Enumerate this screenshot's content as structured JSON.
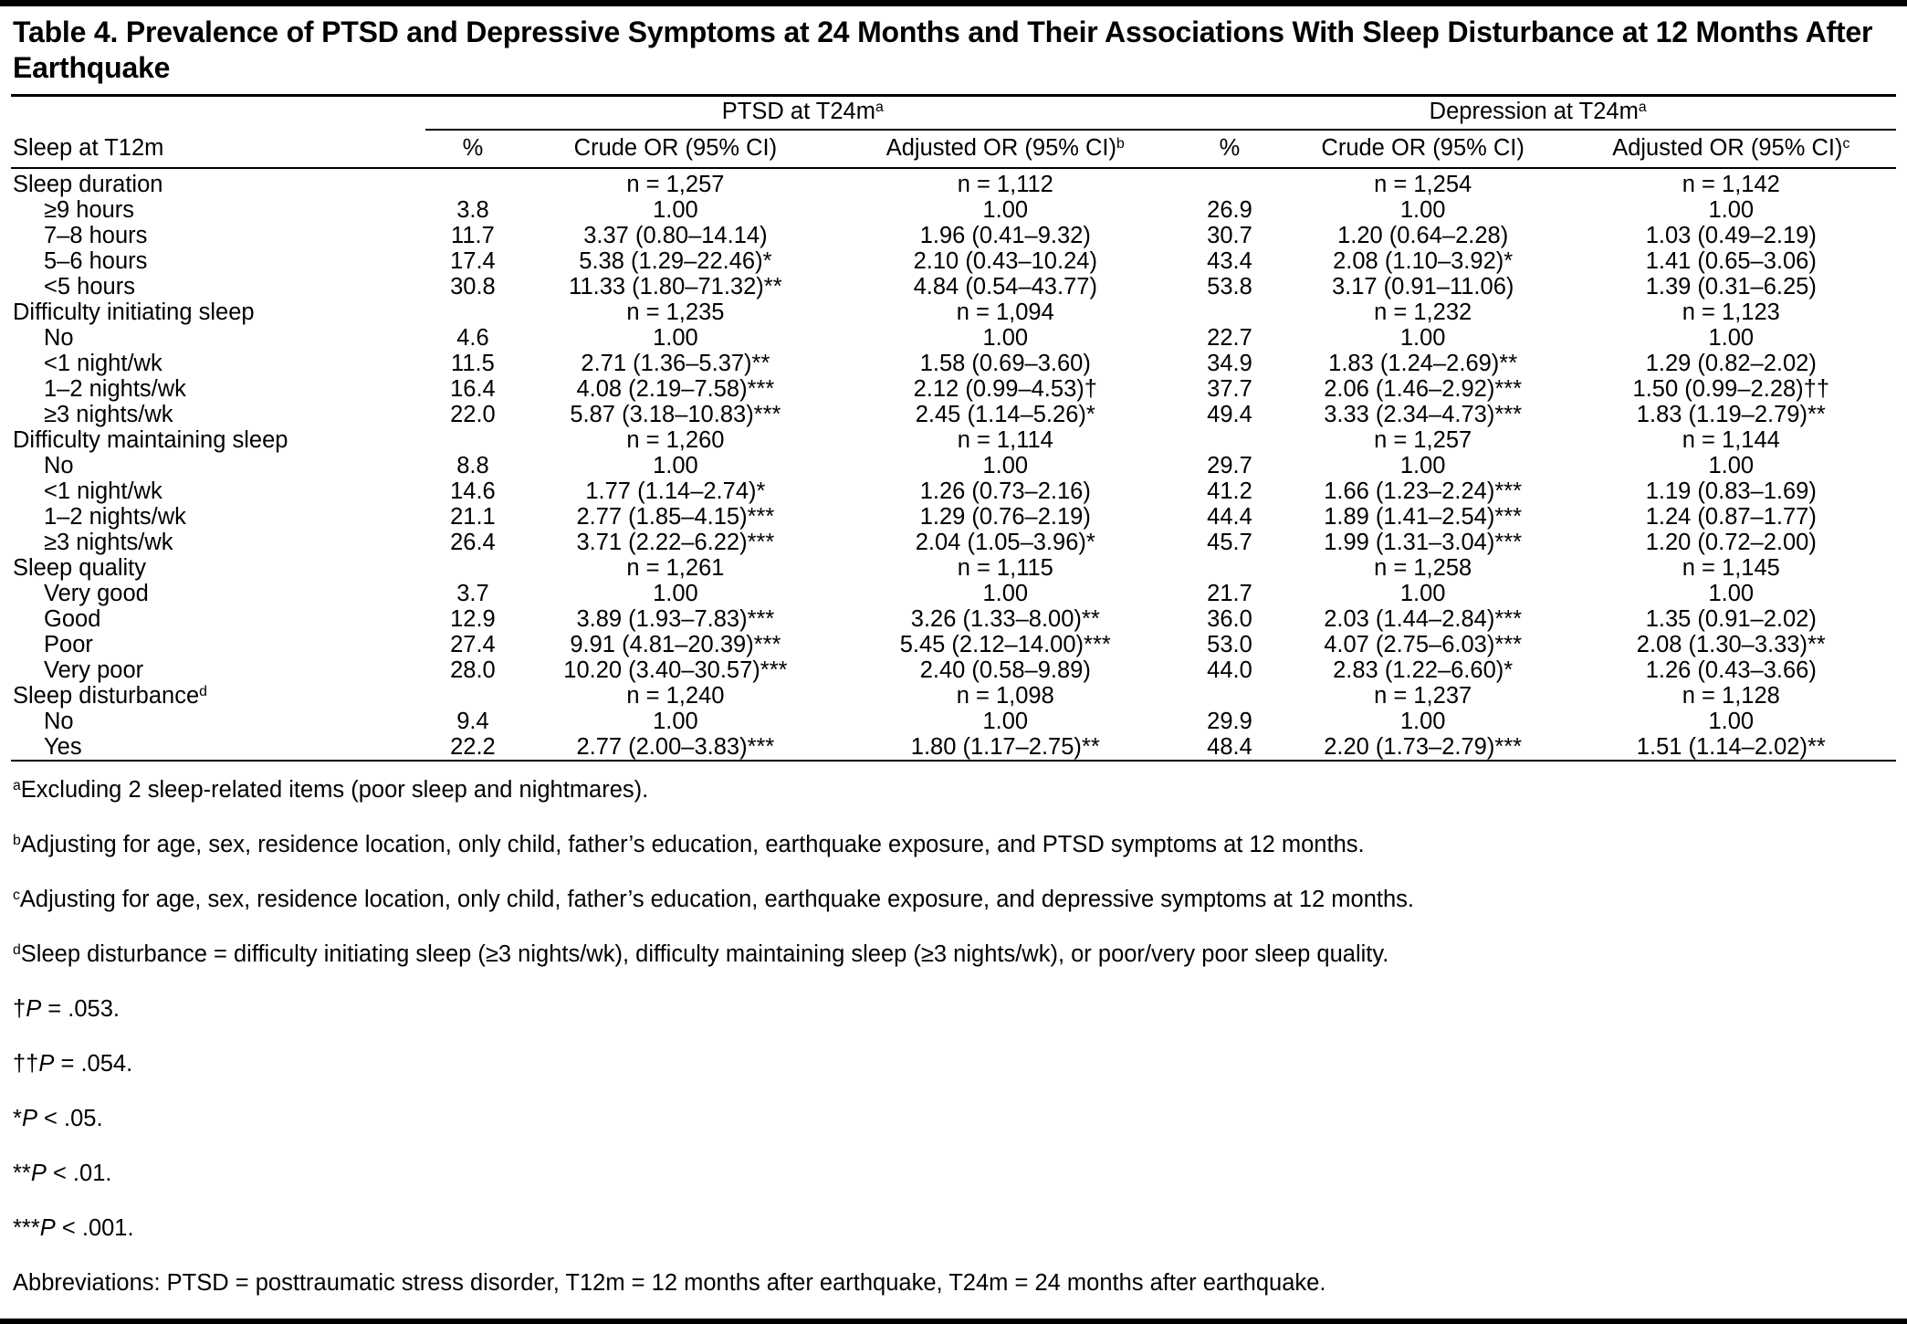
{
  "colors": {
    "text": "#000000",
    "background": "#ffffff",
    "rules": "#000000"
  },
  "title": "Table 4. Prevalence of PTSD and Depressive Symptoms at 24 Months and Their Associations With Sleep Disturbance at 12 Months After Earthquake",
  "table": {
    "row_header": "Sleep at T12m",
    "groups": [
      {
        "label": "PTSD at T24m",
        "sup": "a"
      },
      {
        "label": "Depression at T24m",
        "sup": "a"
      }
    ],
    "columns": [
      {
        "label": "%",
        "sup": ""
      },
      {
        "label": "Crude OR (95% CI)",
        "sup": ""
      },
      {
        "label": "Adjusted OR (95% CI)",
        "sup": "b"
      },
      {
        "label": "%",
        "sup": ""
      },
      {
        "label": "Crude OR (95% CI)",
        "sup": ""
      },
      {
        "label": "Adjusted OR (95% CI)",
        "sup": "c"
      }
    ],
    "rows": [
      {
        "label": "Sleep duration",
        "section": true,
        "indent": false,
        "sup": "",
        "cells": [
          "",
          "n = 1,257",
          "n = 1,112",
          "",
          "n = 1,254",
          "n = 1,142"
        ]
      },
      {
        "label": "≥9 hours",
        "section": false,
        "indent": true,
        "sup": "",
        "cells": [
          "3.8",
          "1.00",
          "1.00",
          "26.9",
          "1.00",
          "1.00"
        ]
      },
      {
        "label": "7–8 hours",
        "section": false,
        "indent": true,
        "sup": "",
        "cells": [
          "11.7",
          "3.37 (0.80–14.14)",
          "1.96 (0.41–9.32)",
          "30.7",
          "1.20 (0.64–2.28)",
          "1.03 (0.49–2.19)"
        ]
      },
      {
        "label": "5–6 hours",
        "section": false,
        "indent": true,
        "sup": "",
        "cells": [
          "17.4",
          "5.38 (1.29–22.46)*",
          "2.10 (0.43–10.24)",
          "43.4",
          "2.08 (1.10–3.92)*",
          "1.41 (0.65–3.06)"
        ]
      },
      {
        "label": "<5 hours",
        "section": false,
        "indent": true,
        "sup": "",
        "cells": [
          "30.8",
          "11.33 (1.80–71.32)**",
          "4.84 (0.54–43.77)",
          "53.8",
          "3.17 (0.91–11.06)",
          "1.39 (0.31–6.25)"
        ]
      },
      {
        "label": "Difficulty initiating sleep",
        "section": true,
        "indent": false,
        "sup": "",
        "cells": [
          "",
          "n = 1,235",
          "n = 1,094",
          "",
          "n = 1,232",
          "n = 1,123"
        ]
      },
      {
        "label": "No",
        "section": false,
        "indent": true,
        "sup": "",
        "cells": [
          "4.6",
          "1.00",
          "1.00",
          "22.7",
          "1.00",
          "1.00"
        ]
      },
      {
        "label": "<1 night/wk",
        "section": false,
        "indent": true,
        "sup": "",
        "cells": [
          "11.5",
          "2.71 (1.36–5.37)**",
          "1.58 (0.69–3.60)",
          "34.9",
          "1.83 (1.24–2.69)**",
          "1.29 (0.82–2.02)"
        ]
      },
      {
        "label": "1–2 nights/wk",
        "section": false,
        "indent": true,
        "sup": "",
        "cells": [
          "16.4",
          "4.08 (2.19–7.58)***",
          "2.12 (0.99–4.53)†",
          "37.7",
          "2.06 (1.46–2.92)***",
          "1.50 (0.99–2.28)††"
        ]
      },
      {
        "label": "≥3 nights/wk",
        "section": false,
        "indent": true,
        "sup": "",
        "cells": [
          "22.0",
          "5.87 (3.18–10.83)***",
          "2.45 (1.14–5.26)*",
          "49.4",
          "3.33 (2.34–4.73)***",
          "1.83 (1.19–2.79)**"
        ]
      },
      {
        "label": "Difficulty maintaining sleep",
        "section": true,
        "indent": false,
        "sup": "",
        "cells": [
          "",
          "n = 1,260",
          "n = 1,114",
          "",
          "n = 1,257",
          "n = 1,144"
        ]
      },
      {
        "label": "No",
        "section": false,
        "indent": true,
        "sup": "",
        "cells": [
          "8.8",
          "1.00",
          "1.00",
          "29.7",
          "1.00",
          "1.00"
        ]
      },
      {
        "label": "<1 night/wk",
        "section": false,
        "indent": true,
        "sup": "",
        "cells": [
          "14.6",
          "1.77 (1.14–2.74)*",
          "1.26 (0.73–2.16)",
          "41.2",
          "1.66 (1.23–2.24)***",
          "1.19 (0.83–1.69)"
        ]
      },
      {
        "label": "1–2 nights/wk",
        "section": false,
        "indent": true,
        "sup": "",
        "cells": [
          "21.1",
          "2.77 (1.85–4.15)***",
          "1.29 (0.76–2.19)",
          "44.4",
          "1.89 (1.41–2.54)***",
          "1.24 (0.87–1.77)"
        ]
      },
      {
        "label": "≥3 nights/wk",
        "section": false,
        "indent": true,
        "sup": "",
        "cells": [
          "26.4",
          "3.71 (2.22–6.22)***",
          "2.04 (1.05–3.96)*",
          "45.7",
          "1.99 (1.31–3.04)***",
          "1.20 (0.72–2.00)"
        ]
      },
      {
        "label": "Sleep quality",
        "section": true,
        "indent": false,
        "sup": "",
        "cells": [
          "",
          "n = 1,261",
          "n = 1,115",
          "",
          "n = 1,258",
          "n = 1,145"
        ]
      },
      {
        "label": "Very good",
        "section": false,
        "indent": true,
        "sup": "",
        "cells": [
          "3.7",
          "1.00",
          "1.00",
          "21.7",
          "1.00",
          "1.00"
        ]
      },
      {
        "label": "Good",
        "section": false,
        "indent": true,
        "sup": "",
        "cells": [
          "12.9",
          "3.89 (1.93–7.83)***",
          "3.26 (1.33–8.00)**",
          "36.0",
          "2.03 (1.44–2.84)***",
          "1.35 (0.91–2.02)"
        ]
      },
      {
        "label": "Poor",
        "section": false,
        "indent": true,
        "sup": "",
        "cells": [
          "27.4",
          "9.91 (4.81–20.39)***",
          "5.45 (2.12–14.00)***",
          "53.0",
          "4.07 (2.75–6.03)***",
          "2.08 (1.30–3.33)**"
        ]
      },
      {
        "label": "Very poor",
        "section": false,
        "indent": true,
        "sup": "",
        "cells": [
          "28.0",
          "10.20 (3.40–30.57)***",
          "2.40 (0.58–9.89)",
          "44.0",
          "2.83 (1.22–6.60)*",
          "1.26 (0.43–3.66)"
        ]
      },
      {
        "label": "Sleep disturbance",
        "section": true,
        "indent": false,
        "sup": "d",
        "cells": [
          "",
          "n = 1,240",
          "n = 1,098",
          "",
          "n = 1,237",
          "n = 1,128"
        ]
      },
      {
        "label": "No",
        "section": false,
        "indent": true,
        "sup": "",
        "cells": [
          "9.4",
          "1.00",
          "1.00",
          "29.9",
          "1.00",
          "1.00"
        ]
      },
      {
        "label": "Yes",
        "section": false,
        "indent": true,
        "sup": "",
        "cells": [
          "22.2",
          "2.77 (2.00–3.83)***",
          "1.80 (1.17–2.75)**",
          "48.4",
          "2.20 (1.73–2.79)***",
          "1.51 (1.14–2.02)**"
        ]
      }
    ]
  },
  "footnotes": [
    {
      "segments": [
        {
          "t": "sup",
          "v": "a"
        },
        {
          "t": "text",
          "v": "Excluding 2 sleep-related items (poor sleep and nightmares)."
        }
      ]
    },
    {
      "segments": [
        {
          "t": "sup",
          "v": "b"
        },
        {
          "t": "text",
          "v": "Adjusting for age, sex, residence location, only child, father’s education, earthquake exposure, and PTSD symptoms at 12 months."
        }
      ]
    },
    {
      "segments": [
        {
          "t": "sup",
          "v": "c"
        },
        {
          "t": "text",
          "v": "Adjusting for age, sex, residence location, only child, father’s education, earthquake exposure, and depressive symptoms at 12 months."
        }
      ]
    },
    {
      "segments": [
        {
          "t": "sup",
          "v": "d"
        },
        {
          "t": "text",
          "v": "Sleep disturbance = difficulty initiating sleep (≥3 nights/wk), difficulty maintaining sleep (≥3 nights/wk), or poor/very poor sleep quality."
        }
      ]
    },
    {
      "segments": [
        {
          "t": "text",
          "v": "†"
        },
        {
          "t": "i",
          "v": "P"
        },
        {
          "t": "text",
          "v": " = .053."
        }
      ]
    },
    {
      "segments": [
        {
          "t": "text",
          "v": "††"
        },
        {
          "t": "i",
          "v": "P"
        },
        {
          "t": "text",
          "v": " = .054."
        }
      ]
    },
    {
      "segments": [
        {
          "t": "text",
          "v": "*"
        },
        {
          "t": "i",
          "v": "P"
        },
        {
          "t": "text",
          "v": " < .05."
        }
      ]
    },
    {
      "segments": [
        {
          "t": "text",
          "v": "**"
        },
        {
          "t": "i",
          "v": "P"
        },
        {
          "t": "text",
          "v": " < .01."
        }
      ]
    },
    {
      "segments": [
        {
          "t": "text",
          "v": "***"
        },
        {
          "t": "i",
          "v": "P"
        },
        {
          "t": "text",
          "v": " < .001."
        }
      ]
    },
    {
      "segments": [
        {
          "t": "text",
          "v": "Abbreviations: PTSD = posttraumatic stress disorder, T12m = 12 months after earthquake, T24m = 24 months after earthquake."
        }
      ]
    }
  ]
}
